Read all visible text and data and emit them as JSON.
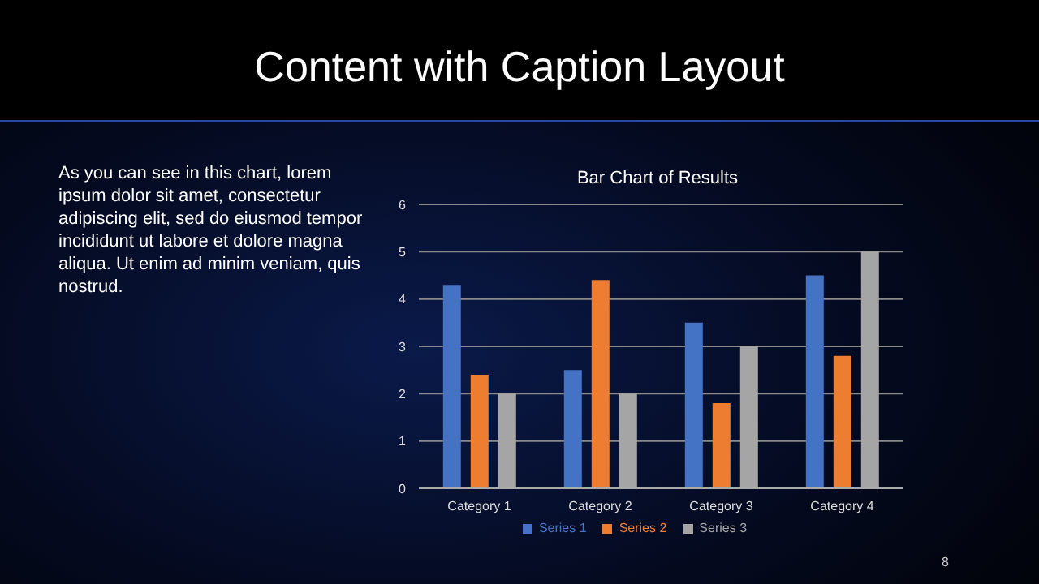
{
  "chart_data": {
    "type": "bar",
    "title": "Content with Caption Layout",
    "subtitle": "Bar Chart of Results",
    "annotations": [
      "As you can see in this chart, lorem ipsum dolor sit amet, consectetur adipiscing elit, sed do eiusmod tempor incididunt ut labore et dolore magna aliqua. Ut enim ad minim veniam, quis nostrud.",
      "8"
    ],
    "categories": [
      "Category 1",
      "Category 2",
      "Category 3",
      "Category 4"
    ],
    "series": [
      {
        "name": "Series 1",
        "color": "#4472c4",
        "values": [
          4.3,
          2.5,
          3.5,
          4.5
        ]
      },
      {
        "name": "Series 2",
        "color": "#ed7d31",
        "values": [
          2.4,
          4.4,
          1.8,
          2.8
        ]
      },
      {
        "name": "Series 3",
        "color": "#a5a5a5",
        "values": [
          2,
          2,
          3,
          5
        ]
      }
    ],
    "ylim": [
      0,
      6
    ],
    "yticks": [
      0,
      1,
      2,
      3,
      4,
      5,
      6
    ],
    "grid": "y",
    "legend": "bottom"
  }
}
